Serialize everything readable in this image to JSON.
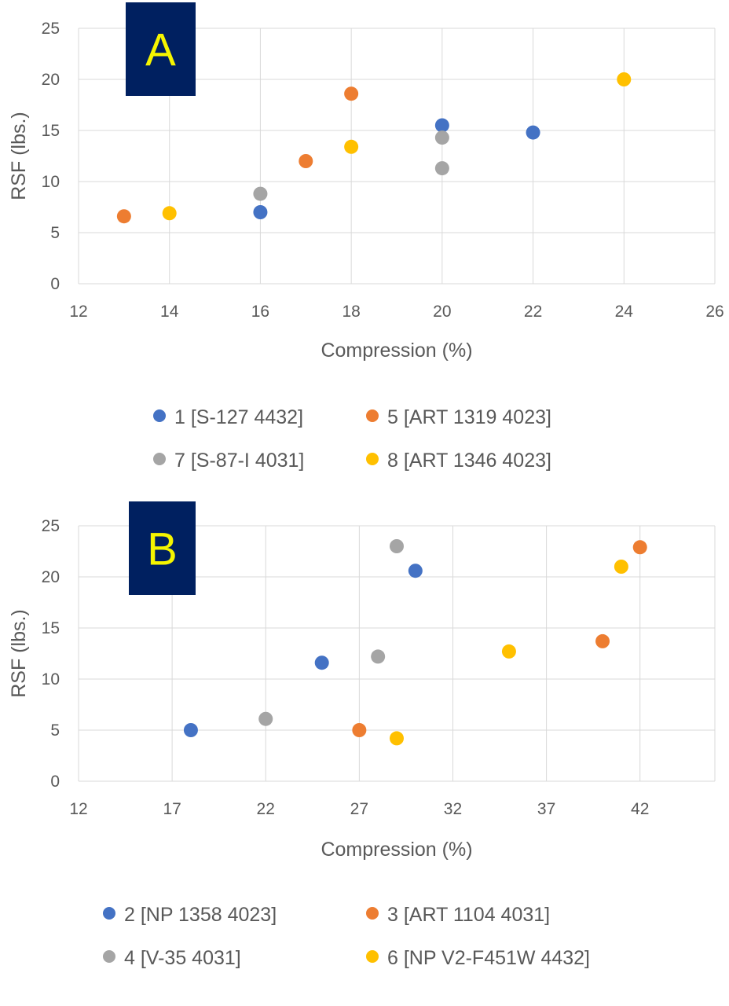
{
  "colors": {
    "blue": "#4472c4",
    "orange": "#ed7d31",
    "gray": "#a5a5a5",
    "yellow": "#ffc000",
    "panel_label_bg": "#002060",
    "panel_label_text": "#f5f500"
  },
  "chart_data": [
    {
      "type": "scatter",
      "panel_label": "A",
      "xlabel": "Compression (%)",
      "ylabel": "RSF (lbs.)",
      "xlim": [
        12,
        26
      ],
      "ylim": [
        0,
        25
      ],
      "xticks": [
        12,
        14,
        16,
        18,
        20,
        22,
        24,
        26
      ],
      "yticks": [
        0,
        5,
        10,
        15,
        20,
        25
      ],
      "grid": true,
      "legend_position": "bottom",
      "series": [
        {
          "name": "1 [S-127 4432]",
          "color": "#4472c4",
          "points": [
            [
              16,
              7.0
            ],
            [
              20,
              15.5
            ],
            [
              22,
              14.8
            ]
          ]
        },
        {
          "name": "5 [ART 1319 4023]",
          "color": "#ed7d31",
          "points": [
            [
              13,
              6.6
            ],
            [
              17,
              12.0
            ],
            [
              18,
              18.6
            ]
          ]
        },
        {
          "name": "7 [S-87-I 4031]",
          "color": "#a5a5a5",
          "points": [
            [
              16,
              8.8
            ],
            [
              20,
              14.3
            ],
            [
              20,
              11.3
            ]
          ]
        },
        {
          "name": "8 [ART 1346 4023]",
          "color": "#ffc000",
          "points": [
            [
              14,
              6.9
            ],
            [
              18,
              13.4
            ],
            [
              24,
              20.0
            ]
          ]
        }
      ]
    },
    {
      "type": "scatter",
      "panel_label": "B",
      "xlabel": "Compression (%)",
      "ylabel": "RSF (lbs.)",
      "xlim": [
        12,
        46
      ],
      "ylim": [
        0,
        25
      ],
      "xticks": [
        12,
        17,
        22,
        27,
        32,
        37,
        42
      ],
      "yticks": [
        0,
        5,
        10,
        15,
        20,
        25
      ],
      "grid": true,
      "legend_position": "bottom",
      "series": [
        {
          "name": "2 [NP 1358 4023]",
          "color": "#4472c4",
          "points": [
            [
              18,
              5.0
            ],
            [
              25,
              11.6
            ],
            [
              30,
              20.6
            ]
          ]
        },
        {
          "name": "3 [ART 1104 4031]",
          "color": "#ed7d31",
          "points": [
            [
              27,
              5.0
            ],
            [
              40,
              13.7
            ],
            [
              42,
              22.9
            ]
          ]
        },
        {
          "name": "4 [V-35 4031]",
          "color": "#a5a5a5",
          "points": [
            [
              22,
              6.1
            ],
            [
              28,
              12.2
            ],
            [
              29,
              23.0
            ]
          ]
        },
        {
          "name": "6 [NP V2-F451W 4432]",
          "color": "#ffc000",
          "points": [
            [
              29,
              4.2
            ],
            [
              35,
              12.7
            ],
            [
              41,
              21.0
            ]
          ]
        }
      ]
    }
  ]
}
